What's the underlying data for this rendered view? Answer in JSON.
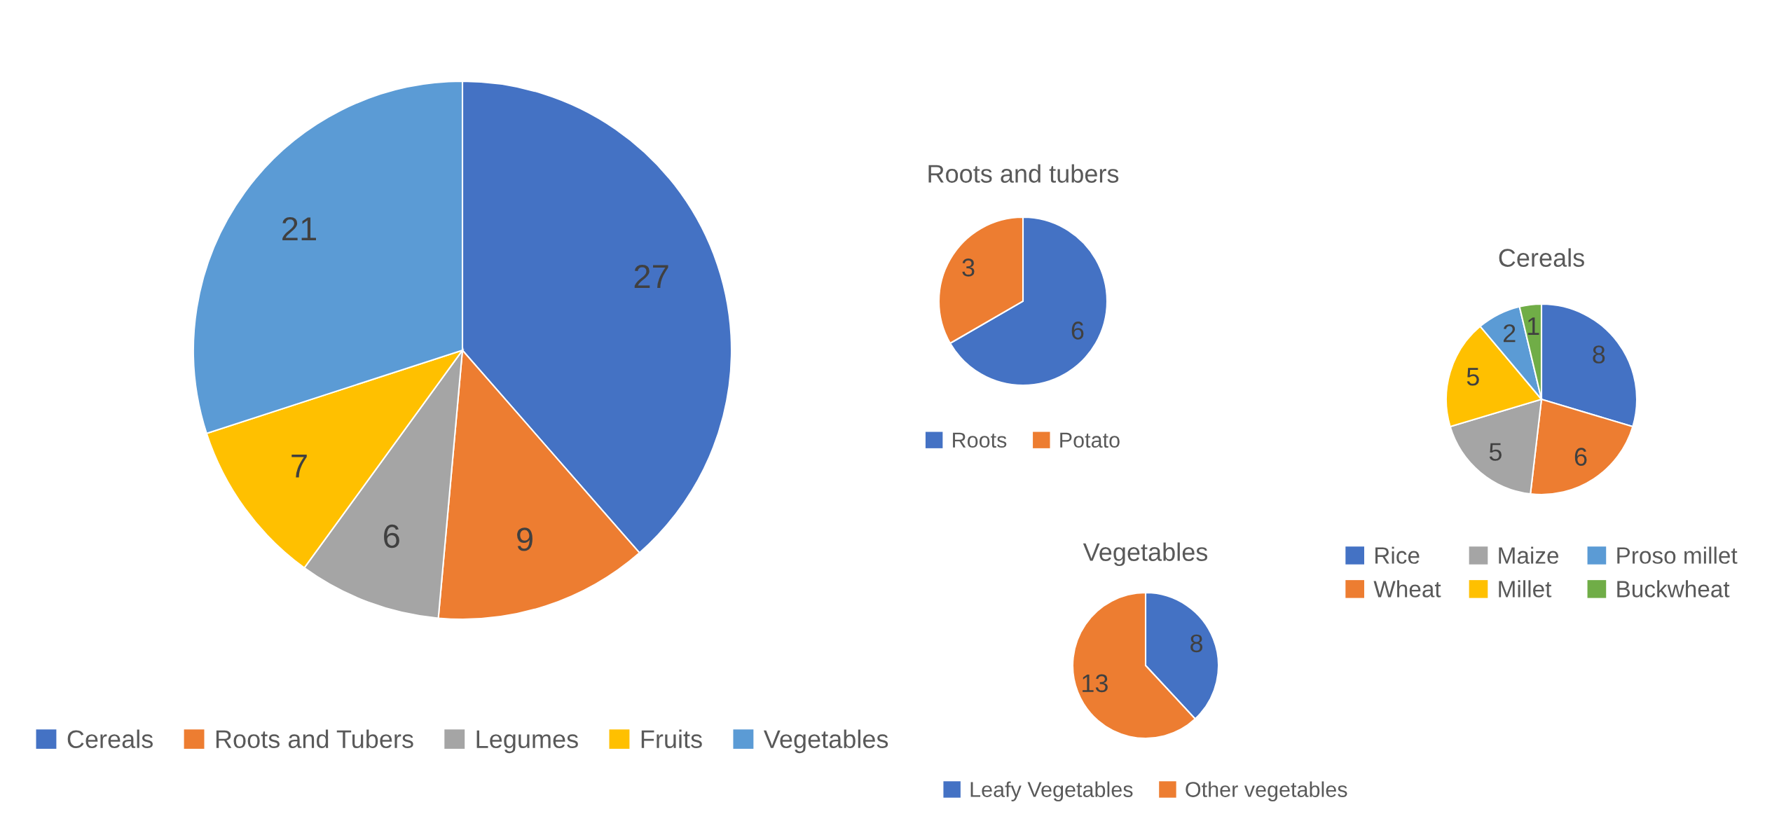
{
  "chart_data": [
    {
      "type": "pie",
      "categories": [
        "Cereals",
        "Roots and Tubers",
        "Legumes",
        "Fruits",
        "Vegetables"
      ],
      "values": [
        27,
        9,
        6,
        7,
        21
      ],
      "colors": [
        "#4472c4",
        "#ed7d31",
        "#a5a5a5",
        "#ffc000",
        "#5b9bd5"
      ],
      "data_labels": true,
      "legend": "bottom"
    },
    {
      "type": "pie",
      "title": "Roots and tubers",
      "categories": [
        "Roots",
        "Potato"
      ],
      "values": [
        6,
        3
      ],
      "colors": [
        "#4472c4",
        "#ed7d31"
      ],
      "data_labels": true,
      "legend": "bottom"
    },
    {
      "type": "pie",
      "title": "Cereals",
      "categories": [
        "Rice",
        "Wheat",
        "Maize",
        "Millet",
        "Proso millet",
        "Buckwheat"
      ],
      "values": [
        8,
        6,
        5,
        5,
        2,
        1
      ],
      "colors": [
        "#4472c4",
        "#ed7d31",
        "#a5a5a5",
        "#ffc000",
        "#5b9bd5",
        "#70ad47"
      ],
      "data_labels": true,
      "legend": "bottom"
    },
    {
      "type": "pie",
      "title": "Vegetables",
      "categories": [
        "Leafy Vegetables",
        "Other vegetables"
      ],
      "values": [
        8,
        13
      ],
      "colors": [
        "#4472c4",
        "#ed7d31"
      ],
      "data_labels": true,
      "legend": "bottom"
    }
  ]
}
